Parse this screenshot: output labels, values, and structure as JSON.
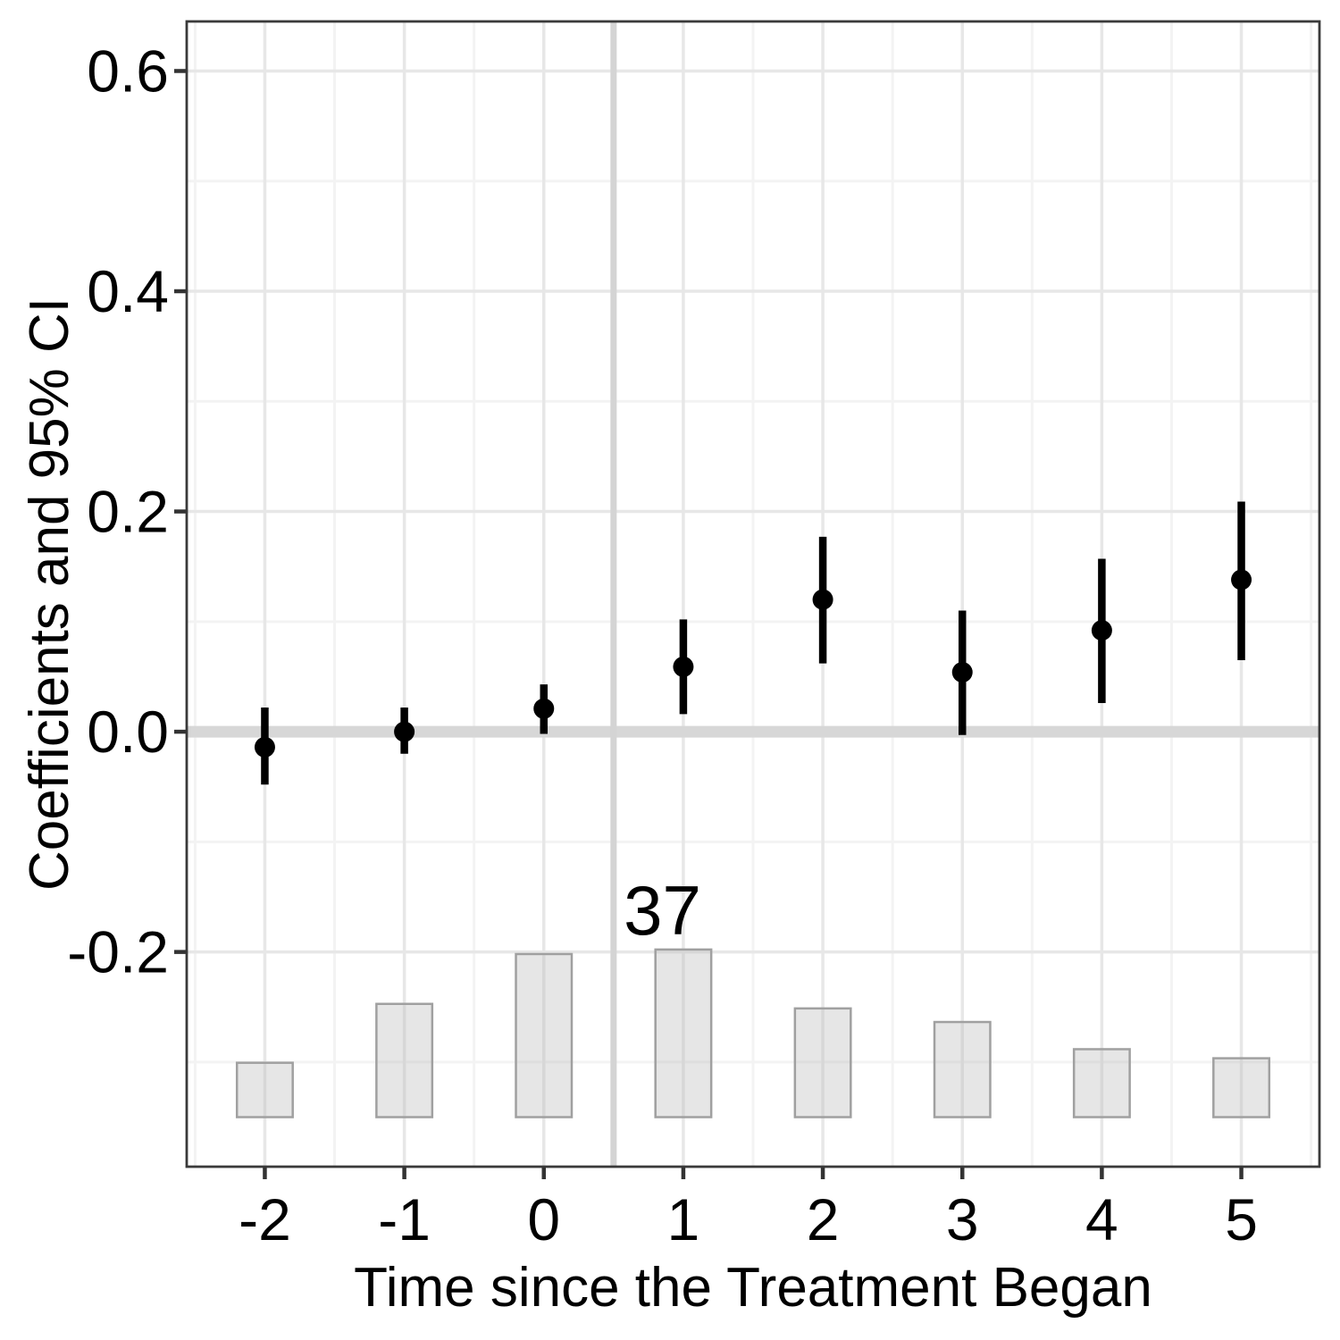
{
  "chart_data": {
    "type": "scatter",
    "subtype": "event-study-pointrange-with-count-bars",
    "title": "",
    "xlabel": "Time since the Treatment Began",
    "ylabel": "Coefficients and 95% CI",
    "xlim": [
      -2.56,
      5.56
    ],
    "ylim": [
      -0.395,
      0.645
    ],
    "grid": true,
    "legend": "none",
    "x_ticks": [
      -2,
      -1,
      0,
      1,
      2,
      3,
      4,
      5
    ],
    "x_tick_labels": [
      "-2",
      "-1",
      "0",
      "1",
      "2",
      "3",
      "4",
      "5"
    ],
    "x_minor_ticks": [
      -2.5,
      -1.5,
      -0.5,
      0.5,
      1.5,
      2.5,
      3.5,
      4.5,
      5.5
    ],
    "y_ticks": [
      0.6,
      0.4,
      0.2,
      0.0,
      -0.2
    ],
    "y_tick_labels": [
      "0.6",
      "0.4",
      "0.2",
      "0.0",
      "-0.2"
    ],
    "y_minor_ticks": [
      0.5,
      0.3,
      0.1,
      -0.1,
      -0.3
    ],
    "reference_lines": {
      "horizontal_y": 0,
      "vertical_x": 0.5
    },
    "series": [
      {
        "name": "coefficients",
        "type": "pointrange",
        "points": [
          {
            "x": -2,
            "estimate": -0.014,
            "ci_low": -0.048,
            "ci_high": 0.022
          },
          {
            "x": -1,
            "estimate": 0.0,
            "ci_low": -0.02,
            "ci_high": 0.022
          },
          {
            "x": 0,
            "estimate": 0.021,
            "ci_low": -0.002,
            "ci_high": 0.043
          },
          {
            "x": 1,
            "estimate": 0.059,
            "ci_low": 0.016,
            "ci_high": 0.102
          },
          {
            "x": 2,
            "estimate": 0.12,
            "ci_low": 0.062,
            "ci_high": 0.177
          },
          {
            "x": 3,
            "estimate": 0.054,
            "ci_low": -0.003,
            "ci_high": 0.11
          },
          {
            "x": 4,
            "estimate": 0.092,
            "ci_low": 0.026,
            "ci_high": 0.157
          },
          {
            "x": 5,
            "estimate": 0.138,
            "ci_low": 0.065,
            "ci_high": 0.209
          }
        ]
      },
      {
        "name": "observation-counts",
        "type": "bar",
        "baseline": -0.35,
        "value_per_count": 0.004114,
        "bar_width": 0.4,
        "bars": [
          {
            "x": -2,
            "count": 12
          },
          {
            "x": -1,
            "count": 25
          },
          {
            "x": 0,
            "count": 36
          },
          {
            "x": 1,
            "count": 37
          },
          {
            "x": 2,
            "count": 24
          },
          {
            "x": 3,
            "count": 21
          },
          {
            "x": 4,
            "count": 15
          },
          {
            "x": 5,
            "count": 13
          }
        ]
      }
    ],
    "annotation": {
      "text": "37",
      "x": 0.85,
      "y": -0.184
    }
  },
  "colors": {
    "point": "#000000",
    "errorbar": "#000000",
    "bar_fill": "#bebebe",
    "bar_fill_opacity": 0.38,
    "bar_stroke": "#a0a0a0",
    "ref_line_h": "#d7d7d7",
    "ref_line_v": "#d4d4d4",
    "grid_major": "#e7e7e7",
    "grid_minor": "#f3f3f3",
    "panel_border": "#3a3a3a",
    "tick_mark": "#333333",
    "text": "#000000",
    "panel_background": "#ffffff"
  }
}
